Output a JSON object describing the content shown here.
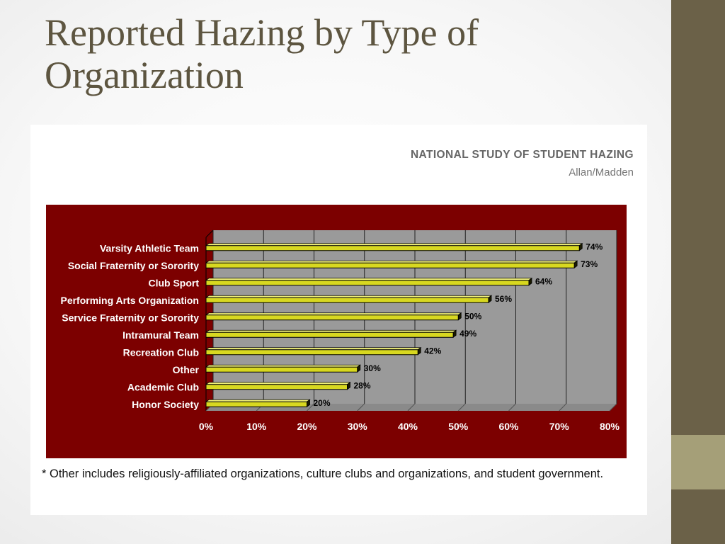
{
  "slide": {
    "title": "Reported Hazing by Type of Organization"
  },
  "source": {
    "title": "NATIONAL STUDY OF STUDENT HAZING",
    "author": "Allan/Madden"
  },
  "footnote": "* Other includes religiously-affiliated organizations, culture clubs and organizations, and student government.",
  "colors": {
    "band": "#6b6148",
    "band_accent": "#a59f78",
    "chart_background": "#7c0000",
    "plot_background": "#9a9a9a",
    "bar_fill": "#d8d820",
    "title_text": "#5d5540"
  },
  "chart_data": {
    "type": "bar",
    "orientation": "horizontal",
    "categories": [
      "Varsity Athletic Team",
      "Social Fraternity or Sorority",
      "Club Sport",
      "Performing Arts Organization",
      "Service Fraternity or Sorority",
      "Intramural Team",
      "Recreation Club",
      "Other",
      "Academic Club",
      "Honor Society"
    ],
    "values": [
      74,
      73,
      64,
      56,
      50,
      49,
      42,
      30,
      28,
      20
    ],
    "data_labels": [
      "74%",
      "73%",
      "64%",
      "56%",
      "50%",
      "49%",
      "42%",
      "30%",
      "28%",
      "20%"
    ],
    "x_ticks": [
      "0%",
      "10%",
      "20%",
      "30%",
      "40%",
      "50%",
      "60%",
      "70%",
      "80%"
    ],
    "xlim": [
      0,
      80
    ],
    "grid": true
  }
}
